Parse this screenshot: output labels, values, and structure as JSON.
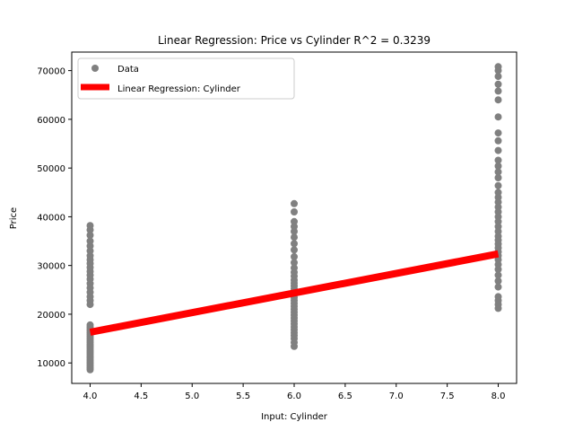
{
  "chart_data": {
    "type": "scatter",
    "title": "Linear Regression: Price vs Cylinder  R^2 = 0.3239",
    "xlabel": "Input: Cylinder",
    "ylabel": "Price",
    "xlim": [
      3.82,
      8.18
    ],
    "ylim": [
      5800,
      73800
    ],
    "xticks": [
      4.0,
      4.5,
      5.0,
      5.5,
      6.0,
      6.5,
      7.0,
      7.5,
      8.0
    ],
    "xtick_labels": [
      "4.0",
      "4.5",
      "5.0",
      "5.5",
      "6.0",
      "6.5",
      "7.0",
      "7.5",
      "8.0"
    ],
    "yticks": [
      10000,
      20000,
      30000,
      40000,
      50000,
      60000,
      70000
    ],
    "ytick_labels": [
      "10000",
      "20000",
      "30000",
      "40000",
      "50000",
      "60000",
      "70000"
    ],
    "grid": false,
    "legend_position": "top-left",
    "series": [
      {
        "name": "Data",
        "kind": "scatter",
        "color": "#808080",
        "points": [
          [
            4,
            8600
          ],
          [
            4,
            9000
          ],
          [
            4,
            9400
          ],
          [
            4,
            9800
          ],
          [
            4,
            10200
          ],
          [
            4,
            10600
          ],
          [
            4,
            11000
          ],
          [
            4,
            11400
          ],
          [
            4,
            11800
          ],
          [
            4,
            12200
          ],
          [
            4,
            12600
          ],
          [
            4,
            13000
          ],
          [
            4,
            13400
          ],
          [
            4,
            13800
          ],
          [
            4,
            14200
          ],
          [
            4,
            14600
          ],
          [
            4,
            15000
          ],
          [
            4,
            15400
          ],
          [
            4,
            15800
          ],
          [
            4,
            16200
          ],
          [
            4,
            16600
          ],
          [
            4,
            17000
          ],
          [
            4,
            17400
          ],
          [
            4,
            17800
          ],
          [
            4,
            22000
          ],
          [
            4,
            22800
          ],
          [
            4,
            23600
          ],
          [
            4,
            24500
          ],
          [
            4,
            25400
          ],
          [
            4,
            26300
          ],
          [
            4,
            27200
          ],
          [
            4,
            28000
          ],
          [
            4,
            28800
          ],
          [
            4,
            29600
          ],
          [
            4,
            30400
          ],
          [
            4,
            31200
          ],
          [
            4,
            32000
          ],
          [
            4,
            33000
          ],
          [
            4,
            34000
          ],
          [
            4,
            35000
          ],
          [
            4,
            36200
          ],
          [
            4,
            37300
          ],
          [
            4,
            38200
          ],
          [
            6,
            13400
          ],
          [
            6,
            14200
          ],
          [
            6,
            15000
          ],
          [
            6,
            15600
          ],
          [
            6,
            16200
          ],
          [
            6,
            16800
          ],
          [
            6,
            17400
          ],
          [
            6,
            18000
          ],
          [
            6,
            18600
          ],
          [
            6,
            19200
          ],
          [
            6,
            19800
          ],
          [
            6,
            20400
          ],
          [
            6,
            21000
          ],
          [
            6,
            21600
          ],
          [
            6,
            22200
          ],
          [
            6,
            22800
          ],
          [
            6,
            23400
          ],
          [
            6,
            24000
          ],
          [
            6,
            24600
          ],
          [
            6,
            25200
          ],
          [
            6,
            25800
          ],
          [
            6,
            26400
          ],
          [
            6,
            27000
          ],
          [
            6,
            27800
          ],
          [
            6,
            28600
          ],
          [
            6,
            29500
          ],
          [
            6,
            30600
          ],
          [
            6,
            31800
          ],
          [
            6,
            33200
          ],
          [
            6,
            34500
          ],
          [
            6,
            35800
          ],
          [
            6,
            37000
          ],
          [
            6,
            38000
          ],
          [
            6,
            39000
          ],
          [
            6,
            41000
          ],
          [
            6,
            42700
          ],
          [
            8,
            21200
          ],
          [
            8,
            22000
          ],
          [
            8,
            22800
          ],
          [
            8,
            23600
          ],
          [
            8,
            25600
          ],
          [
            8,
            26800
          ],
          [
            8,
            28000
          ],
          [
            8,
            29200
          ],
          [
            8,
            30200
          ],
          [
            8,
            31200
          ],
          [
            8,
            32000
          ],
          [
            8,
            32800
          ],
          [
            8,
            33600
          ],
          [
            8,
            34400
          ],
          [
            8,
            35200
          ],
          [
            8,
            36000
          ],
          [
            8,
            37000
          ],
          [
            8,
            38000
          ],
          [
            8,
            39000
          ],
          [
            8,
            40000
          ],
          [
            8,
            41000
          ],
          [
            8,
            42000
          ],
          [
            8,
            43000
          ],
          [
            8,
            44000
          ],
          [
            8,
            45000
          ],
          [
            8,
            46400
          ],
          [
            8,
            48000
          ],
          [
            8,
            49200
          ],
          [
            8,
            50400
          ],
          [
            8,
            51600
          ],
          [
            8,
            53600
          ],
          [
            8,
            55600
          ],
          [
            8,
            57200
          ],
          [
            8,
            60500
          ],
          [
            8,
            64000
          ],
          [
            8,
            65800
          ],
          [
            8,
            67200
          ],
          [
            8,
            68800
          ],
          [
            8,
            70000
          ],
          [
            8,
            70800
          ]
        ]
      },
      {
        "name": "Linear Regression: Cylinder",
        "kind": "line",
        "color": "#ff0000",
        "x": [
          4,
          8
        ],
        "y": [
          16300,
          32400
        ]
      }
    ]
  }
}
